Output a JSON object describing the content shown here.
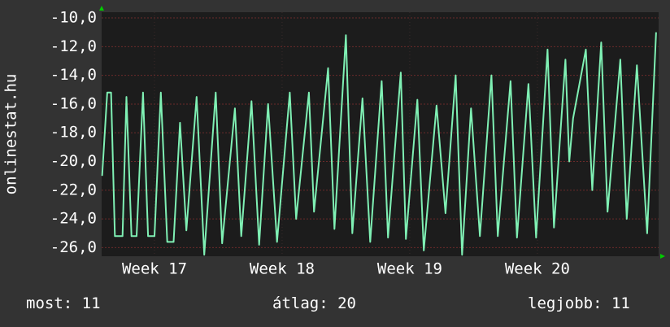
{
  "chart_data": {
    "type": "line",
    "ylabel": "onlinestat.hu",
    "x": [
      16.59,
      16.63,
      16.66,
      16.69,
      16.75,
      16.78,
      16.82,
      16.86,
      16.91,
      16.95,
      17.0,
      17.05,
      17.1,
      17.15,
      17.2,
      17.25,
      17.33,
      17.39,
      17.48,
      17.53,
      17.63,
      17.68,
      17.76,
      17.82,
      17.89,
      17.96,
      18.06,
      18.11,
      18.21,
      18.25,
      18.36,
      18.41,
      18.5,
      18.55,
      18.63,
      18.69,
      18.78,
      18.83,
      18.93,
      18.97,
      19.06,
      19.11,
      19.21,
      19.28,
      19.36,
      19.41,
      19.48,
      19.55,
      19.64,
      19.69,
      19.79,
      19.84,
      19.93,
      19.99,
      20.08,
      20.13,
      20.22,
      20.25,
      20.28,
      20.38,
      20.43,
      20.5,
      20.55,
      20.65,
      20.7,
      20.78,
      20.86,
      20.93
    ],
    "series": [
      {
        "color": "#7ff0b4",
        "values": [
          -21,
          -15.2,
          -15.2,
          -25.2,
          -25.2,
          -15.5,
          -25.2,
          -25.2,
          -15.2,
          -25.2,
          -25.2,
          -15.2,
          -25.6,
          -25.6,
          -17.3,
          -24.8,
          -15.5,
          -26.5,
          -15.2,
          -25.7,
          -16.3,
          -25.2,
          -15.8,
          -25.8,
          -16,
          -25.6,
          -15.2,
          -24,
          -15.2,
          -23.5,
          -13.5,
          -24.7,
          -11.2,
          -25,
          -15.6,
          -25.6,
          -14.4,
          -25.3,
          -13.8,
          -25.4,
          -15.7,
          -26.2,
          -16.1,
          -23.6,
          -14,
          -26.5,
          -16.3,
          -25.2,
          -14,
          -25.2,
          -14.4,
          -25.3,
          -14.6,
          -25.3,
          -12.2,
          -24.6,
          -12.9,
          -20,
          -17,
          -12.2,
          -22,
          -11.7,
          -23.5,
          -12.9,
          -24,
          -13.3,
          -25,
          -11
        ]
      }
    ],
    "xlim": [
      16.586,
      20.95
    ],
    "xticks": [
      {
        "value": 17,
        "label": "Week 17"
      },
      {
        "value": 18,
        "label": "Week 18"
      },
      {
        "value": 19,
        "label": "Week 19"
      },
      {
        "value": 20,
        "label": "Week 20"
      }
    ],
    "ylim": [
      -26.6,
      -9.6
    ],
    "yticks": [
      {
        "value": -10,
        "label": "-10,0"
      },
      {
        "value": -12,
        "label": "-12,0"
      },
      {
        "value": -14,
        "label": "-14,0"
      },
      {
        "value": -16,
        "label": "-16,0"
      },
      {
        "value": -18,
        "label": "-18,0"
      },
      {
        "value": -20,
        "label": "-20,0"
      },
      {
        "value": -22,
        "label": "-22,0"
      },
      {
        "value": -24,
        "label": "-24,0"
      },
      {
        "value": -26,
        "label": "-26,0"
      }
    ],
    "grid": true
  },
  "footer": {
    "current": "most: 11",
    "average": "átlag: 20",
    "best": "legjobb: 11"
  }
}
